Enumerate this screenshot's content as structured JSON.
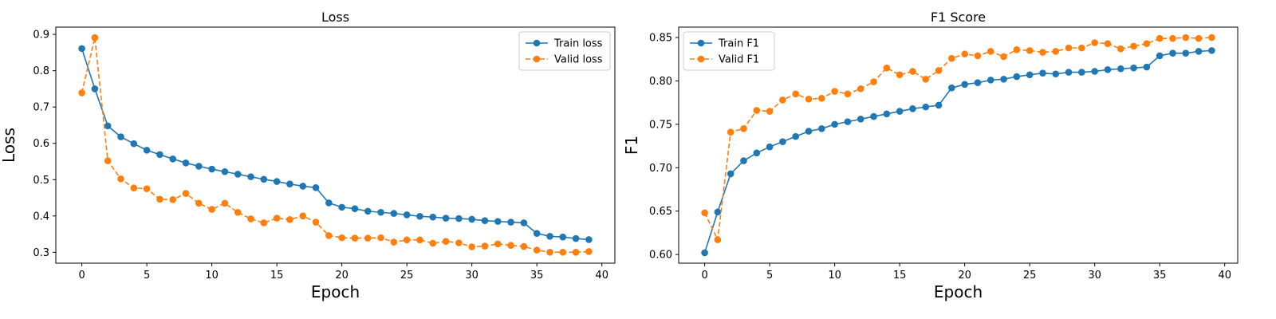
{
  "chart_data": [
    {
      "type": "line",
      "title": "Loss",
      "xlabel": "Epoch",
      "ylabel": "Loss",
      "xlim": [
        -2,
        41
      ],
      "ylim": [
        0.27,
        0.92
      ],
      "xticks": [
        0,
        5,
        10,
        15,
        20,
        25,
        30,
        35,
        40
      ],
      "yticks": [
        0.3,
        0.4,
        0.5,
        0.6,
        0.7,
        0.8,
        0.9
      ],
      "ytick_decimals": 1,
      "legend_position": "upper-right",
      "grid": false,
      "x": [
        0,
        1,
        2,
        3,
        4,
        5,
        6,
        7,
        8,
        9,
        10,
        11,
        12,
        13,
        14,
        15,
        16,
        17,
        18,
        19,
        20,
        21,
        22,
        23,
        24,
        25,
        26,
        27,
        28,
        29,
        30,
        31,
        32,
        33,
        34,
        35,
        36,
        37,
        38,
        39
      ],
      "series": [
        {
          "name": "Train loss",
          "color": "#1f77b4",
          "dashed": false,
          "values": [
            0.861,
            0.75,
            0.648,
            0.618,
            0.599,
            0.581,
            0.569,
            0.557,
            0.546,
            0.537,
            0.529,
            0.522,
            0.515,
            0.508,
            0.501,
            0.495,
            0.488,
            0.482,
            0.478,
            0.436,
            0.424,
            0.42,
            0.413,
            0.41,
            0.407,
            0.403,
            0.399,
            0.397,
            0.394,
            0.393,
            0.391,
            0.387,
            0.385,
            0.383,
            0.381,
            0.352,
            0.344,
            0.342,
            0.338,
            0.335
          ]
        },
        {
          "name": "Valid loss",
          "color": "#ff7f0e",
          "dashed": true,
          "values": [
            0.739,
            0.891,
            0.552,
            0.502,
            0.477,
            0.475,
            0.446,
            0.445,
            0.462,
            0.435,
            0.418,
            0.435,
            0.41,
            0.392,
            0.381,
            0.394,
            0.39,
            0.4,
            0.383,
            0.346,
            0.34,
            0.339,
            0.339,
            0.34,
            0.328,
            0.334,
            0.334,
            0.325,
            0.33,
            0.326,
            0.315,
            0.317,
            0.323,
            0.319,
            0.316,
            0.306,
            0.3,
            0.3,
            0.3,
            0.302
          ]
        }
      ]
    },
    {
      "type": "line",
      "title": "F1 Score",
      "xlabel": "Epoch",
      "ylabel": "F1",
      "xlim": [
        -2,
        41
      ],
      "ylim": [
        0.59,
        0.862
      ],
      "xticks": [
        0,
        5,
        10,
        15,
        20,
        25,
        30,
        35,
        40
      ],
      "yticks": [
        0.6,
        0.65,
        0.7,
        0.75,
        0.8,
        0.85
      ],
      "ytick_decimals": 2,
      "legend_position": "upper-left",
      "grid": false,
      "x": [
        0,
        1,
        2,
        3,
        4,
        5,
        6,
        7,
        8,
        9,
        10,
        11,
        12,
        13,
        14,
        15,
        16,
        17,
        18,
        19,
        20,
        21,
        22,
        23,
        24,
        25,
        26,
        27,
        28,
        29,
        30,
        31,
        32,
        33,
        34,
        35,
        36,
        37,
        38,
        39
      ],
      "series": [
        {
          "name": "Train F1",
          "color": "#1f77b4",
          "dashed": false,
          "values": [
            0.602,
            0.649,
            0.693,
            0.708,
            0.717,
            0.724,
            0.73,
            0.736,
            0.742,
            0.745,
            0.75,
            0.753,
            0.756,
            0.759,
            0.762,
            0.765,
            0.768,
            0.77,
            0.772,
            0.792,
            0.796,
            0.798,
            0.801,
            0.802,
            0.805,
            0.807,
            0.809,
            0.808,
            0.81,
            0.81,
            0.811,
            0.813,
            0.814,
            0.815,
            0.816,
            0.829,
            0.832,
            0.832,
            0.834,
            0.835
          ]
        },
        {
          "name": "Valid F1",
          "color": "#ff7f0e",
          "dashed": true,
          "values": [
            0.648,
            0.617,
            0.741,
            0.745,
            0.766,
            0.765,
            0.778,
            0.785,
            0.779,
            0.78,
            0.788,
            0.785,
            0.791,
            0.799,
            0.815,
            0.807,
            0.811,
            0.802,
            0.812,
            0.826,
            0.831,
            0.829,
            0.834,
            0.828,
            0.836,
            0.835,
            0.833,
            0.834,
            0.838,
            0.838,
            0.844,
            0.843,
            0.837,
            0.84,
            0.843,
            0.849,
            0.849,
            0.85,
            0.849,
            0.85
          ]
        }
      ]
    }
  ]
}
